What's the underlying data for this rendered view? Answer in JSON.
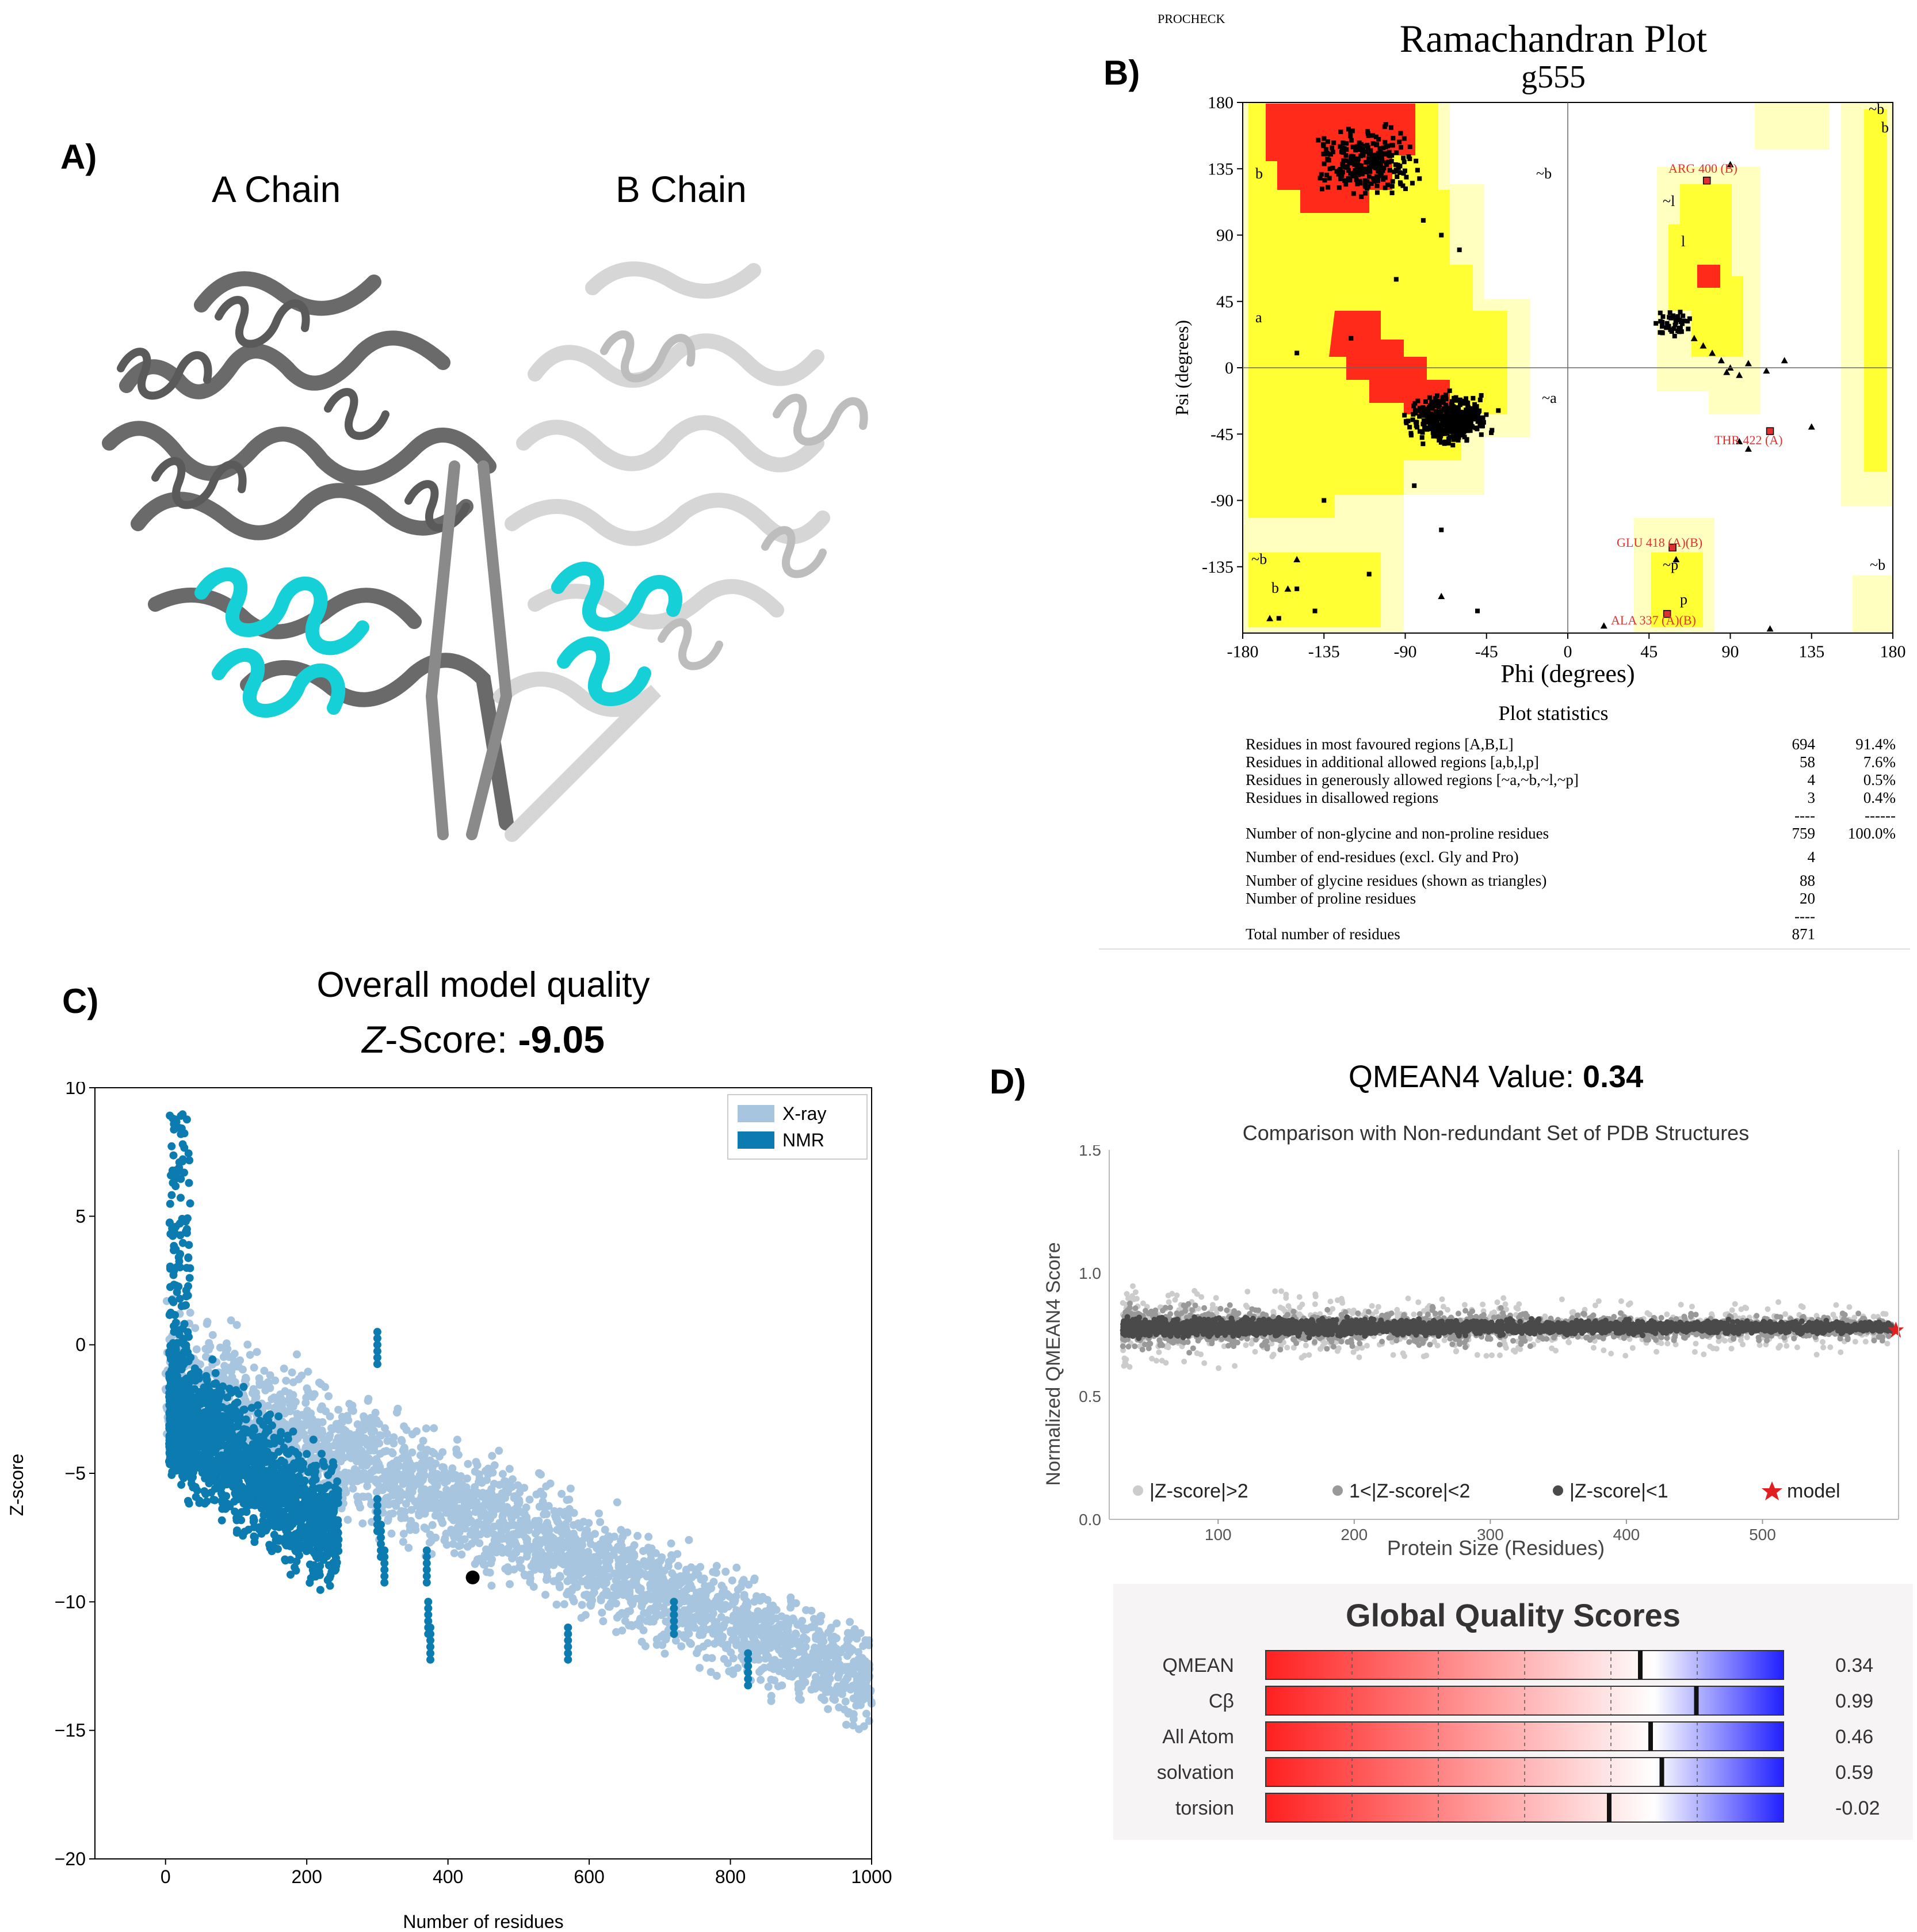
{
  "panel_labels": {
    "a": "A)",
    "b": "B)",
    "c": "C)",
    "d": "D)"
  },
  "panel_a": {
    "chain_a": "A Chain",
    "chain_b": "B Chain"
  },
  "panel_b": {
    "procheck": "PROCHECK",
    "title": "Ramachandran Plot",
    "subtitle": "g555",
    "xlabel": "Phi (degrees)",
    "ylabel": "Psi (degrees)",
    "x_ticks": [
      "-180",
      "-135",
      "-90",
      "-45",
      "0",
      "45",
      "90",
      "135",
      "180"
    ],
    "y_ticks": [
      "180",
      "135",
      "90",
      "45",
      "0",
      "-45",
      "-90",
      "-135"
    ],
    "region_labels": [
      "b",
      "~b",
      "a",
      "~a",
      "~l",
      "l",
      "~b",
      "b",
      "~b",
      "b",
      "~p",
      "p",
      "~b"
    ],
    "annotations": [
      "ARG 400 (B)",
      "THR 422 (A)",
      "GLU 418 (A)(B)",
      "ALA 337 (A)(B)"
    ],
    "stats_title": "Plot statistics",
    "stats": [
      {
        "label": "Residues in most favoured regions  [A,B,L]",
        "count": "694",
        "pct": "91.4%"
      },
      {
        "label": "Residues in additional allowed regions  [a,b,l,p]",
        "count": "58",
        "pct": "7.6%"
      },
      {
        "label": "Residues in generously allowed regions  [~a,~b,~l,~p]",
        "count": "4",
        "pct": "0.5%"
      },
      {
        "label": "Residues in disallowed regions",
        "count": "3",
        "pct": "0.4%"
      },
      {
        "label": "",
        "count": "----",
        "pct": "------"
      },
      {
        "label": "Number of non-glycine and non-proline residues",
        "count": "759",
        "pct": "100.0%"
      },
      {
        "label": "Number of end-residues (excl. Gly and Pro)",
        "count": "4",
        "pct": ""
      },
      {
        "label": "Number of glycine residues (shown as triangles)",
        "count": "88",
        "pct": ""
      },
      {
        "label": "Number of proline residues",
        "count": "20",
        "pct": ""
      },
      {
        "label": "",
        "count": "----",
        "pct": ""
      },
      {
        "label": "Total number of residues",
        "count": "871",
        "pct": ""
      }
    ]
  },
  "panel_c": {
    "title_line1": "Overall model quality",
    "title_z": "Z",
    "title_rest": "-Score: ",
    "title_value": "-9.05"
  },
  "panel_d": {
    "qmean_label": "QMEAN4 Value: ",
    "qmean_value": "0.34",
    "global_title": "Global Quality Scores",
    "scores": [
      {
        "name": "QMEAN",
        "value": "0.34"
      },
      {
        "name": "Cβ",
        "value": "0.99"
      },
      {
        "name": "All Atom",
        "value": "0.46"
      },
      {
        "name": "solvation",
        "value": "0.59"
      },
      {
        "name": "torsion",
        "value": "-0.02"
      }
    ]
  },
  "chart_data": [
    {
      "id": "zscore",
      "type": "scatter",
      "title": "",
      "xlabel": "Number of residues",
      "ylabel": "Z-score",
      "xlim": [
        -100,
        1000
      ],
      "ylim": [
        -20,
        10
      ],
      "x_ticks": [
        0,
        200,
        400,
        600,
        800,
        1000
      ],
      "y_ticks": [
        10,
        5,
        0,
        -5,
        -10,
        -15,
        -20
      ],
      "legend": [
        "X-ray",
        "NMR"
      ],
      "legend_position": "top-right",
      "series": [
        {
          "name": "X-ray",
          "color": "#a8c5e0",
          "description": "dense cloud trending from ~0 at 0 residues to ~-12 at 1000 residues"
        },
        {
          "name": "NMR",
          "color": "#0b7bb0",
          "description": "dense cluster for 0-250 residues, Z between ~-9 and ~9"
        },
        {
          "name": "model",
          "color": "#000000",
          "points": [
            [
              435,
              -9.05
            ]
          ]
        }
      ]
    },
    {
      "id": "qmean",
      "type": "scatter",
      "title": "Comparison with Non-redundant Set of PDB Structures",
      "xlabel": "Protein Size (Residues)",
      "ylabel": "Normalized QMEAN4 Score",
      "xlim": [
        20,
        600
      ],
      "ylim": [
        0.0,
        1.5
      ],
      "x_ticks": [
        100,
        200,
        300,
        400,
        500
      ],
      "y_ticks": [
        0.0,
        0.5,
        1.0,
        1.5
      ],
      "legend": [
        "|Z-score|>2",
        "1<|Z-score|<2",
        "|Z-score|<1",
        "model"
      ],
      "legend_position": "bottom",
      "series": [
        {
          "name": "|Z-score|>2",
          "color": "#cccccc"
        },
        {
          "name": "1<|Z-score|<2",
          "color": "#999999"
        },
        {
          "name": "|Z-score|<1",
          "color": "#4a4a4a",
          "description": "band around 0.78"
        },
        {
          "name": "model",
          "color": "#e02020",
          "points": [
            [
              598,
              0.77
            ]
          ]
        }
      ]
    },
    {
      "id": "global-quality",
      "type": "bar",
      "title": "Global Quality Scores",
      "categories": [
        "QMEAN",
        "Cβ",
        "All Atom",
        "solvation",
        "torsion"
      ],
      "values": [
        0.34,
        0.99,
        0.46,
        0.59,
        -0.02
      ],
      "xlim": [
        -4,
        2
      ]
    },
    {
      "id": "ramachandran",
      "type": "scatter",
      "title": "Ramachandran Plot",
      "xlabel": "Phi (degrees)",
      "ylabel": "Psi (degrees)",
      "xlim": [
        -180,
        180
      ],
      "ylim": [
        -180,
        180
      ],
      "series": [
        {
          "name": "residues",
          "color": "#000000",
          "clusters": [
            {
              "phi": -110,
              "psi": 140
            },
            {
              "phi": -65,
              "psi": -35
            },
            {
              "phi": 60,
              "psi": 30
            }
          ]
        },
        {
          "name": "glycine",
          "color": "#000000",
          "marker": "triangle"
        },
        {
          "name": "outliers",
          "color": "#e03030",
          "points": [
            [
              77,
              127
            ],
            [
              112,
              -43
            ],
            [
              58,
              -122
            ],
            [
              55,
              -167
            ]
          ]
        }
      ]
    }
  ],
  "colors": {
    "ram_red": "#ff2a1a",
    "ram_yellow": "#ffff33",
    "ram_pale": "#ffffc0",
    "xray": "#a8c5e0",
    "nmr": "#0b7bb0",
    "protein_dark": "#707070",
    "protein_light": "#d8d8d8",
    "cyan": "#16d0d8"
  }
}
